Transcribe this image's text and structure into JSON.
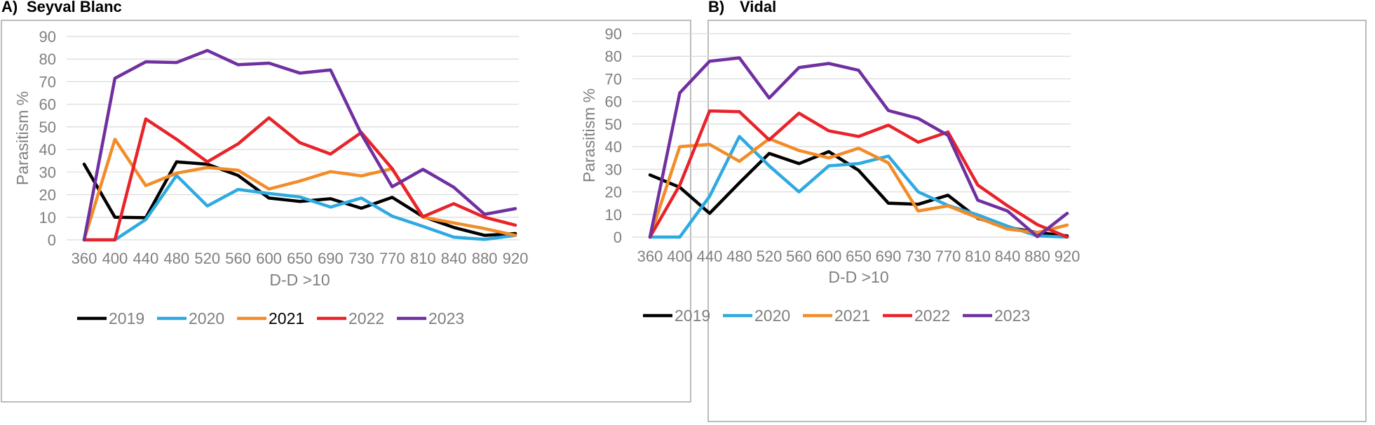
{
  "colors": {
    "2019": "#000000",
    "2020": "#2eaae1",
    "2021": "#f28c28",
    "2022": "#e8232a",
    "2023": "#7030a0",
    "grid": "#d9d9d9",
    "axis_text": "#7f7f7f"
  },
  "chart_data": [
    {
      "type": "line",
      "panel_label": "A)",
      "title": "Seyval Blanc",
      "xlabel": "D-D >10",
      "ylabel": "Parasitism %",
      "ylim": [
        0,
        90
      ],
      "yticks": [
        0,
        10,
        20,
        30,
        40,
        50,
        60,
        70,
        80,
        90
      ],
      "grid": true,
      "legend": "bottom",
      "categories": [
        "360",
        "400",
        "440",
        "480",
        "520",
        "560",
        "600",
        "650",
        "690",
        "730",
        "770",
        "810",
        "840",
        "880",
        "920"
      ],
      "series": [
        {
          "name": "2019",
          "values": [
            33.5,
            10.0,
            9.8,
            34.5,
            33.5,
            28.5,
            18.5,
            17.0,
            18.2,
            14.0,
            18.8,
            10.3,
            5.5,
            2.0,
            2.8
          ]
        },
        {
          "name": "2020",
          "values": [
            0,
            0,
            9.0,
            28.5,
            15.0,
            22.3,
            20.5,
            19.0,
            14.5,
            18.5,
            10.5,
            6.0,
            1.2,
            0.2,
            2.0
          ]
        },
        {
          "name": "2021",
          "values": [
            0,
            44.5,
            24.0,
            29.5,
            32.0,
            30.8,
            22.5,
            26.0,
            30.2,
            28.3,
            31.5,
            10.0,
            7.5,
            5.0,
            2.0
          ]
        },
        {
          "name": "2022",
          "values": [
            0,
            0,
            53.5,
            44.5,
            34.5,
            42.5,
            54.0,
            43.0,
            38.0,
            47.5,
            31.5,
            10.2,
            16.0,
            10.0,
            6.5
          ]
        },
        {
          "name": "2023",
          "values": [
            0,
            71.5,
            78.8,
            78.5,
            83.8,
            77.5,
            78.2,
            73.8,
            75.2,
            46.8,
            23.5,
            31.2,
            23.3,
            11.3,
            13.8
          ]
        }
      ]
    },
    {
      "type": "line",
      "panel_label": "B)",
      "title": "Vidal",
      "xlabel": "D-D >10",
      "ylabel": "Parasitism %",
      "ylim": [
        0,
        90
      ],
      "yticks": [
        0,
        10,
        20,
        30,
        40,
        50,
        60,
        70,
        80,
        90
      ],
      "grid": true,
      "legend": "bottom",
      "categories": [
        "360",
        "400",
        "440",
        "480",
        "520",
        "560",
        "600",
        "650",
        "690",
        "730",
        "770",
        "810",
        "840",
        "880",
        "920"
      ],
      "series": [
        {
          "name": "2019",
          "values": [
            27.5,
            22.0,
            10.5,
            24.0,
            37.0,
            32.5,
            37.8,
            29.5,
            15.0,
            14.5,
            18.5,
            8.3,
            4.3,
            2.0,
            0.5
          ]
        },
        {
          "name": "2020",
          "values": [
            0,
            0,
            18.0,
            44.5,
            31.5,
            20.0,
            31.5,
            32.5,
            35.8,
            20.0,
            14.0,
            9.8,
            4.8,
            0.5,
            0
          ]
        },
        {
          "name": "2021",
          "values": [
            0,
            40.0,
            41.0,
            33.5,
            43.5,
            38.3,
            35.0,
            39.3,
            32.8,
            11.5,
            13.8,
            8.5,
            3.5,
            2.0,
            5.3
          ]
        },
        {
          "name": "2022",
          "values": [
            0,
            23.0,
            55.8,
            55.5,
            43.0,
            54.8,
            47.0,
            44.5,
            49.5,
            42.0,
            46.5,
            23.0,
            13.8,
            5.5,
            0
          ]
        },
        {
          "name": "2023",
          "values": [
            0,
            63.8,
            77.8,
            79.3,
            61.5,
            75.0,
            76.8,
            73.8,
            56.0,
            52.5,
            45.0,
            16.3,
            11.5,
            0.2,
            10.5
          ]
        }
      ]
    }
  ]
}
